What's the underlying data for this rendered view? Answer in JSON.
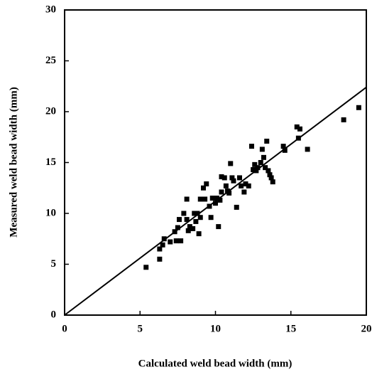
{
  "chart_data": {
    "type": "scatter",
    "xlabel": "Calculated weld bead width (mm)",
    "ylabel": "Measured weld bead width (mm)",
    "xlim": [
      0,
      20
    ],
    "ylim": [
      0,
      30
    ],
    "xticks": [
      0,
      5,
      10,
      15,
      20
    ],
    "yticks": [
      0,
      5,
      10,
      15,
      20,
      25,
      30
    ],
    "series": [
      {
        "mode": "markers",
        "color": "#000000",
        "x": [
          5.4,
          6.3,
          6.3,
          6.5,
          6.6,
          7.0,
          7.3,
          7.5,
          7.4,
          7.7,
          7.6,
          7.9,
          8.1,
          8.1,
          8.3,
          8.5,
          8.2,
          8.6,
          8.8,
          8.7,
          8.9,
          9.0,
          9.0,
          9.3,
          9.2,
          9.4,
          9.6,
          9.7,
          9.8,
          10.0,
          10.1,
          10.3,
          10.4,
          10.4,
          10.6,
          10.7,
          10.8,
          10.2,
          10.9,
          11.0,
          11.1,
          11.2,
          11.4,
          11.6,
          11.7,
          11.9,
          12.0,
          12.2,
          12.4,
          12.5,
          12.6,
          12.7,
          12.8,
          13.0,
          13.1,
          13.2,
          13.3,
          13.4,
          13.5,
          13.6,
          13.7,
          13.8,
          14.5,
          14.6,
          15.4,
          15.6,
          15.5,
          16.1,
          18.5,
          19.5
        ],
        "values": [
          4.7,
          5.5,
          6.5,
          6.9,
          7.5,
          7.2,
          8.2,
          8.6,
          7.3,
          7.3,
          9.4,
          10.0,
          9.4,
          11.4,
          8.7,
          8.5,
          8.3,
          10.0,
          10.0,
          9.2,
          8.0,
          9.6,
          11.4,
          11.4,
          12.5,
          12.9,
          10.7,
          9.6,
          11.5,
          11.0,
          11.5,
          11.3,
          12.1,
          13.6,
          13.5,
          12.7,
          12.2,
          8.7,
          12.0,
          14.9,
          13.5,
          13.2,
          10.6,
          13.5,
          12.7,
          12.1,
          12.9,
          12.7,
          16.6,
          14.3,
          14.8,
          14.2,
          14.5,
          15.0,
          16.3,
          15.5,
          14.5,
          17.1,
          14.2,
          13.8,
          13.5,
          13.1,
          16.6,
          16.2,
          18.5,
          18.3,
          17.4,
          16.3,
          19.2,
          20.4
        ]
      },
      {
        "mode": "line",
        "color": "#000000",
        "x": [
          0,
          20
        ],
        "values": [
          0,
          22.4
        ]
      }
    ]
  }
}
